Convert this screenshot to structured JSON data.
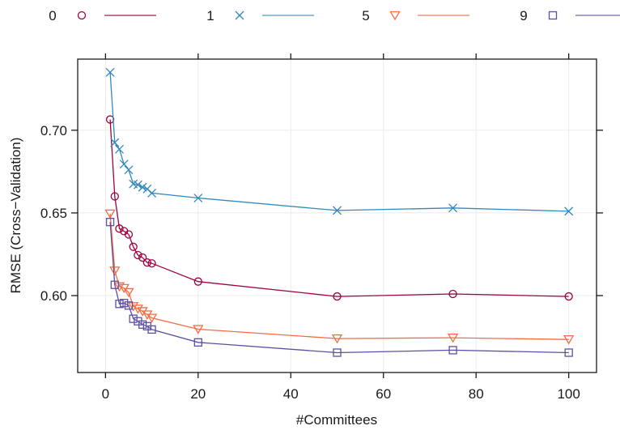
{
  "chart_data": {
    "type": "line",
    "title": "",
    "xlabel": "#Committees",
    "ylabel": "RMSE (Cross−Validation)",
    "xlim": [
      -6,
      106
    ],
    "ylim": [
      0.5535,
      0.743
    ],
    "xticks": [
      0,
      20,
      40,
      60,
      80,
      100
    ],
    "xtick_labels": [
      "0",
      "20",
      "40",
      "60",
      "80",
      "100"
    ],
    "yticks": [
      0.6,
      0.65,
      0.7
    ],
    "ytick_labels": [
      "0.60",
      "0.65",
      "0.70"
    ],
    "grid": true,
    "legend_position": "top",
    "x": [
      1,
      2,
      3,
      4,
      5,
      6,
      7,
      8,
      9,
      10,
      20,
      50,
      75,
      100
    ],
    "series": [
      {
        "name": "0",
        "marker": "circle",
        "color": "#9E0142",
        "line_color": "#A8466E",
        "values": [
          0.7065,
          0.66,
          0.6405,
          0.639,
          0.637,
          0.6295,
          0.6245,
          0.623,
          0.62,
          0.6195,
          0.6085,
          0.5995,
          0.601,
          0.5995
        ]
      },
      {
        "name": "1",
        "marker": "x",
        "color": "#3288BD",
        "line_color": "#6FA8CC",
        "values": [
          0.735,
          0.6925,
          0.6885,
          0.6795,
          0.676,
          0.6675,
          0.667,
          0.6655,
          0.6645,
          0.662,
          0.659,
          0.6515,
          0.653,
          0.651
        ]
      },
      {
        "name": "5",
        "marker": "triangle-down",
        "color": "#F46D43",
        "line_color": "#E9957A",
        "values": [
          0.6495,
          0.615,
          0.6055,
          0.6045,
          0.602,
          0.5935,
          0.592,
          0.5905,
          0.5885,
          0.5865,
          0.5797,
          0.574,
          0.5745,
          0.5735
        ]
      },
      {
        "name": "9",
        "marker": "square",
        "color": "#5E4FA2",
        "line_color": "#8A80B6",
        "values": [
          0.6445,
          0.6065,
          0.595,
          0.5955,
          0.594,
          0.586,
          0.5845,
          0.5825,
          0.5815,
          0.5795,
          0.5717,
          0.5655,
          0.567,
          0.5655
        ]
      }
    ]
  }
}
